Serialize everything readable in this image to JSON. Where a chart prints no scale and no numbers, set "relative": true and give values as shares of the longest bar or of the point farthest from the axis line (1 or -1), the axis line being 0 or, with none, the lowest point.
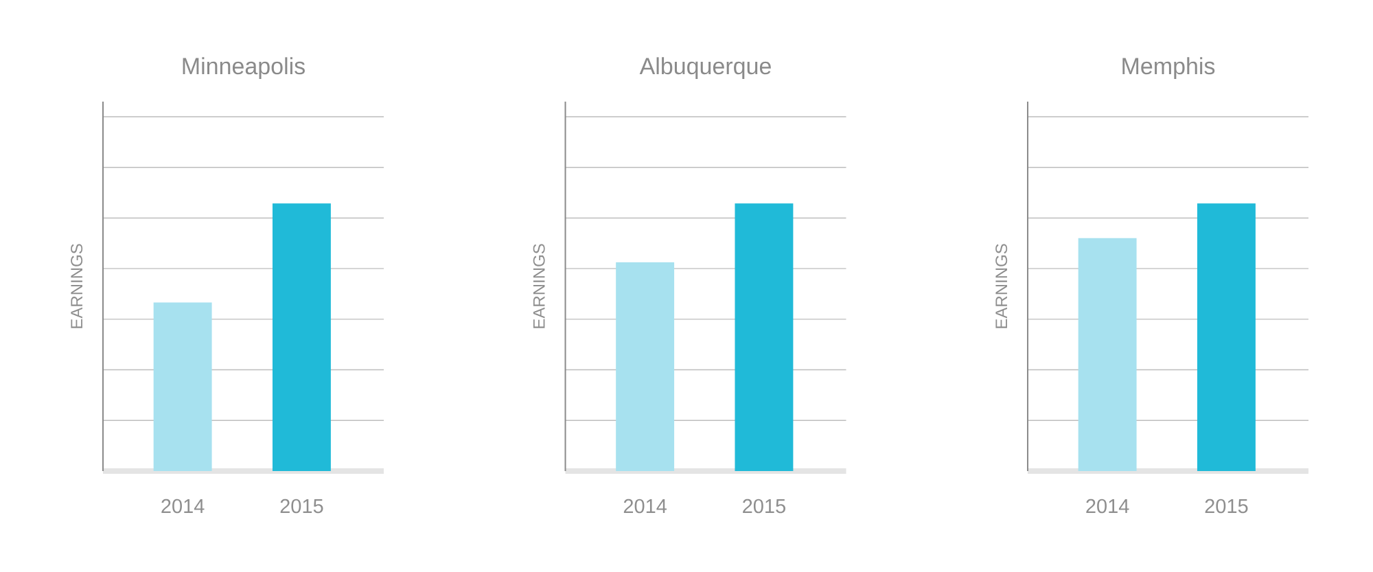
{
  "chart_data": [
    {
      "type": "bar",
      "title": "Minneapolis",
      "ylabel": "EARNINGS",
      "categories": [
        "2014",
        "2015"
      ],
      "values": [
        0.63,
        1
      ],
      "colors": [
        "#a7e1ef",
        "#20bad8"
      ],
      "relative": true,
      "grid": "y"
    },
    {
      "type": "bar",
      "title": "Albuquerque",
      "ylabel": "EARNINGS",
      "categories": [
        "2014",
        "2015"
      ],
      "values": [
        0.78,
        1
      ],
      "colors": [
        "#a7e1ef",
        "#20bad8"
      ],
      "relative": true,
      "grid": "y"
    },
    {
      "type": "bar",
      "title": "Memphis",
      "ylabel": "EARNINGS",
      "categories": [
        "2014",
        "2015"
      ],
      "values": [
        0.87,
        1
      ],
      "colors": [
        "#a7e1ef",
        "#20bad8"
      ],
      "relative": true,
      "grid": "y"
    }
  ]
}
